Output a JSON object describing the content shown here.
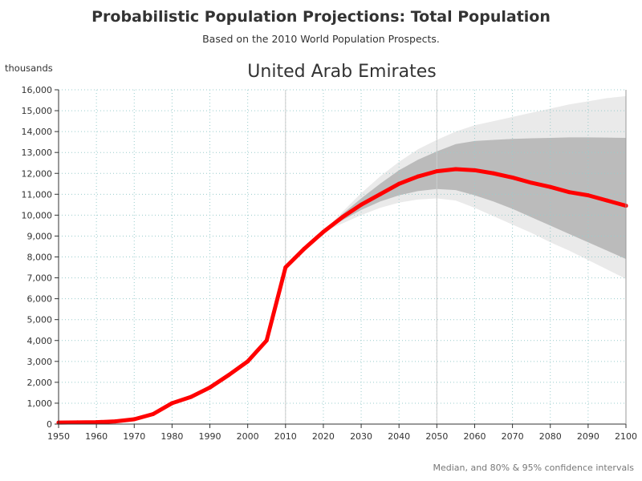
{
  "header": {
    "title": "Probabilistic Population Projections: Total Population",
    "subtitle": "Based on the 2010 World Population Prospects."
  },
  "footer": {
    "note": "Median, and 80% & 95% confidence intervals"
  },
  "colors": {
    "median": "#ff0000",
    "ci80": "#bbbbbb",
    "ci95": "#eaeaea",
    "grid": "#99cccc",
    "refline": "#cccccc",
    "axis": "#333333"
  },
  "chart_data": {
    "type": "line",
    "title": "United Arab Emirates",
    "ylabel": "thousands",
    "xlabel": "",
    "xlim": [
      1950,
      2100
    ],
    "ylim": [
      0,
      16000
    ],
    "x_ticks": [
      1950,
      1960,
      1970,
      1980,
      1990,
      2000,
      2010,
      2020,
      2030,
      2040,
      2050,
      2060,
      2070,
      2080,
      2090,
      2100
    ],
    "x_tick_labels": [
      "1950",
      "1960",
      "1970",
      "1980",
      "1990",
      "2000",
      "2010",
      "2020",
      "2030",
      "2040",
      "2050",
      "2060",
      "2070",
      "2080",
      "2090",
      "2100"
    ],
    "y_ticks": [
      0,
      1000,
      2000,
      3000,
      4000,
      5000,
      6000,
      7000,
      8000,
      9000,
      10000,
      11000,
      12000,
      13000,
      14000,
      15000,
      16000
    ],
    "y_tick_labels": [
      "0",
      "1,000",
      "2,000",
      "3,000",
      "4,000",
      "5,000",
      "6,000",
      "7,000",
      "8,000",
      "9,000",
      "10,000",
      "11,000",
      "12,000",
      "13,000",
      "14,000",
      "15,000",
      "16,000"
    ],
    "reference_lines_x": [
      2010,
      2050
    ],
    "grid": "dotted",
    "series": [
      {
        "name": "Median",
        "x": [
          1950,
          1955,
          1960,
          1965,
          1970,
          1975,
          1980,
          1985,
          1990,
          1995,
          2000,
          2005,
          2010,
          2015,
          2020,
          2025,
          2030,
          2035,
          2040,
          2045,
          2050,
          2055,
          2060,
          2065,
          2070,
          2075,
          2080,
          2085,
          2090,
          2095,
          2100
        ],
        "values": [
          70,
          80,
          90,
          130,
          230,
          480,
          1000,
          1300,
          1750,
          2350,
          3000,
          4000,
          7500,
          8400,
          9200,
          9900,
          10500,
          11000,
          11500,
          11850,
          12100,
          12200,
          12150,
          12000,
          11800,
          11550,
          11350,
          11100,
          10950,
          10700,
          10450
        ]
      },
      {
        "name": "80% confidence interval",
        "x": [
          2020,
          2025,
          2030,
          2035,
          2040,
          2045,
          2050,
          2055,
          2060,
          2065,
          2070,
          2075,
          2080,
          2085,
          2090,
          2095,
          2100
        ],
        "upper": [
          9200,
          10050,
          10800,
          11500,
          12150,
          12650,
          13050,
          13400,
          13550,
          13600,
          13650,
          13680,
          13700,
          13720,
          13720,
          13710,
          13700
        ],
        "lower": [
          9200,
          9750,
          10250,
          10650,
          10950,
          11150,
          11250,
          11200,
          10950,
          10650,
          10300,
          9900,
          9500,
          9100,
          8700,
          8300,
          7900
        ]
      },
      {
        "name": "95% confidence interval",
        "x": [
          2020,
          2025,
          2030,
          2035,
          2040,
          2045,
          2050,
          2055,
          2060,
          2065,
          2070,
          2075,
          2080,
          2085,
          2090,
          2095,
          2100
        ],
        "upper": [
          9200,
          10150,
          11050,
          11850,
          12550,
          13150,
          13600,
          14000,
          14300,
          14500,
          14700,
          14900,
          15100,
          15300,
          15450,
          15600,
          15700
        ],
        "lower": [
          9200,
          9600,
          10000,
          10350,
          10600,
          10750,
          10800,
          10700,
          10350,
          9950,
          9550,
          9150,
          8700,
          8300,
          7850,
          7400,
          6950
        ]
      }
    ]
  }
}
